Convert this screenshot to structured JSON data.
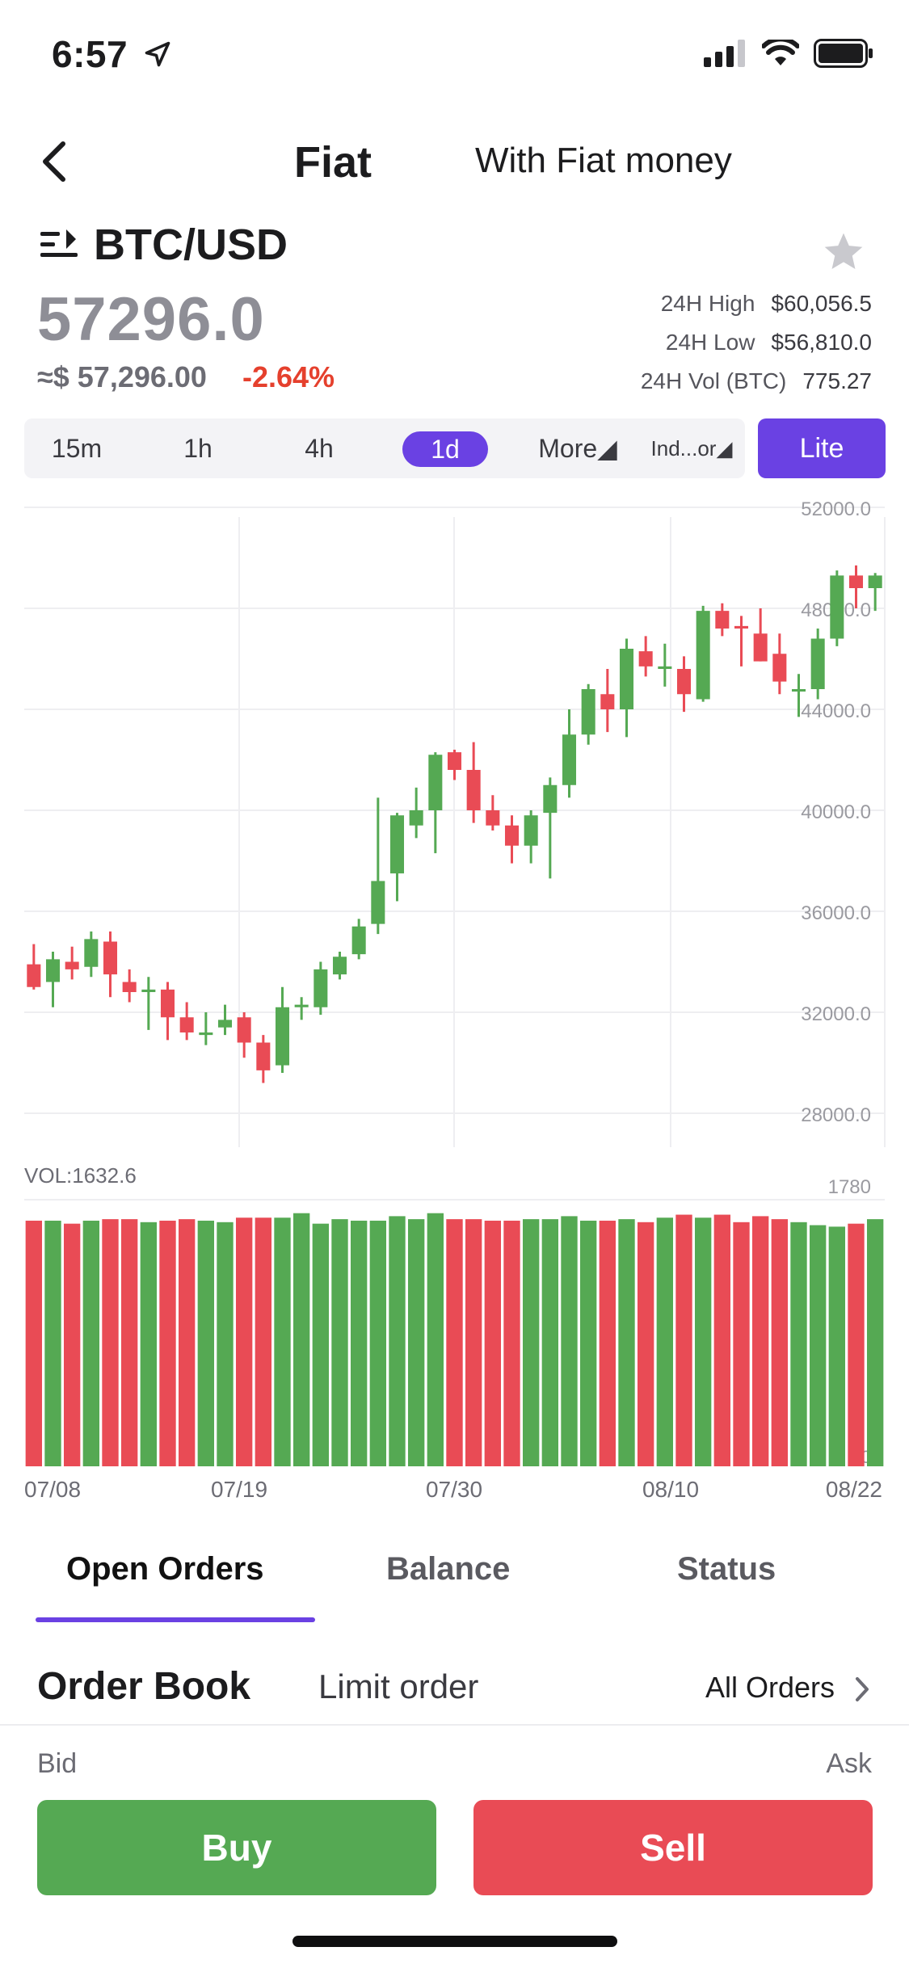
{
  "status_bar": {
    "time": "6:57"
  },
  "nav": {
    "title": "Fiat",
    "subtitle": "With Fiat money"
  },
  "pair": {
    "name": "BTC/USD"
  },
  "price": {
    "last": "57296.0",
    "approx": "≈$ 57,296.00",
    "change": "-2.64%"
  },
  "stats": {
    "high_label": "24H High",
    "high_value": "$60,056.5",
    "low_label": "24H Low",
    "low_value": "$56,810.0",
    "vol_label": "24H Vol (BTC)",
    "vol_value": "775.27"
  },
  "timeframes": [
    "15m",
    "1h",
    "4h",
    "1d",
    "More◢",
    "Ind...or◢"
  ],
  "timeframe_selected": "1d",
  "lite_label": "Lite",
  "colors": {
    "accent": "#6a41e3",
    "up": "#55a953",
    "down": "#e94b55"
  },
  "chart_data": {
    "type": "candlestick",
    "y_ticks": [
      "52000.0",
      "48000.0",
      "44000.0",
      "40000.0",
      "36000.0",
      "32000.0",
      "28000.0"
    ],
    "ylim": [
      28000,
      52000
    ],
    "x_ticks": [
      "07/08",
      "07/19",
      "07/30",
      "08/10",
      "08/22"
    ],
    "candles": [
      {
        "o": 33900,
        "h": 34700,
        "l": 32900,
        "c": 33000
      },
      {
        "o": 33200,
        "h": 34400,
        "l": 32200,
        "c": 34100
      },
      {
        "o": 34000,
        "h": 34600,
        "l": 33300,
        "c": 33700
      },
      {
        "o": 33800,
        "h": 35200,
        "l": 33400,
        "c": 34900
      },
      {
        "o": 34800,
        "h": 35200,
        "l": 32600,
        "c": 33500
      },
      {
        "o": 33200,
        "h": 33700,
        "l": 32400,
        "c": 32800
      },
      {
        "o": 32800,
        "h": 33400,
        "l": 31300,
        "c": 32900
      },
      {
        "o": 32900,
        "h": 33200,
        "l": 30900,
        "c": 31800
      },
      {
        "o": 31800,
        "h": 32400,
        "l": 30900,
        "c": 31200
      },
      {
        "o": 31100,
        "h": 32000,
        "l": 30700,
        "c": 31200
      },
      {
        "o": 31400,
        "h": 32300,
        "l": 31100,
        "c": 31700
      },
      {
        "o": 31800,
        "h": 32000,
        "l": 30200,
        "c": 30800
      },
      {
        "o": 30800,
        "h": 31100,
        "l": 29200,
        "c": 29700
      },
      {
        "o": 29900,
        "h": 33000,
        "l": 29600,
        "c": 32200
      },
      {
        "o": 32200,
        "h": 32600,
        "l": 31700,
        "c": 32300
      },
      {
        "o": 32200,
        "h": 34000,
        "l": 31900,
        "c": 33700
      },
      {
        "o": 33500,
        "h": 34400,
        "l": 33300,
        "c": 34200
      },
      {
        "o": 34300,
        "h": 35700,
        "l": 34100,
        "c": 35400
      },
      {
        "o": 35500,
        "h": 40500,
        "l": 35100,
        "c": 37200
      },
      {
        "o": 37500,
        "h": 39900,
        "l": 36400,
        "c": 39800
      },
      {
        "o": 39400,
        "h": 40900,
        "l": 38900,
        "c": 40000
      },
      {
        "o": 40000,
        "h": 42300,
        "l": 38300,
        "c": 42200
      },
      {
        "o": 42300,
        "h": 42400,
        "l": 41200,
        "c": 41600
      },
      {
        "o": 41600,
        "h": 42700,
        "l": 39500,
        "c": 40000
      },
      {
        "o": 40000,
        "h": 40600,
        "l": 39200,
        "c": 39400
      },
      {
        "o": 39400,
        "h": 39800,
        "l": 37900,
        "c": 38600
      },
      {
        "o": 38600,
        "h": 40000,
        "l": 37900,
        "c": 39800
      },
      {
        "o": 39900,
        "h": 41300,
        "l": 37300,
        "c": 41000
      },
      {
        "o": 41000,
        "h": 44000,
        "l": 40500,
        "c": 43000
      },
      {
        "o": 43000,
        "h": 45000,
        "l": 42600,
        "c": 44800
      },
      {
        "o": 44600,
        "h": 45600,
        "l": 43100,
        "c": 44000
      },
      {
        "o": 44000,
        "h": 46800,
        "l": 42900,
        "c": 46400
      },
      {
        "o": 46300,
        "h": 46900,
        "l": 45300,
        "c": 45700
      },
      {
        "o": 45600,
        "h": 46600,
        "l": 44900,
        "c": 45700
      },
      {
        "o": 45600,
        "h": 46100,
        "l": 43900,
        "c": 44600
      },
      {
        "o": 44400,
        "h": 48100,
        "l": 44300,
        "c": 47900
      },
      {
        "o": 47900,
        "h": 48200,
        "l": 46900,
        "c": 47200
      },
      {
        "o": 47300,
        "h": 47700,
        "l": 45700,
        "c": 47200
      },
      {
        "o": 47000,
        "h": 48000,
        "l": 45900,
        "c": 45900
      },
      {
        "o": 46200,
        "h": 47000,
        "l": 44600,
        "c": 45100
      },
      {
        "o": 44800,
        "h": 45400,
        "l": 43700,
        "c": 44800
      },
      {
        "o": 44800,
        "h": 47200,
        "l": 44400,
        "c": 46800
      },
      {
        "o": 46800,
        "h": 49500,
        "l": 46500,
        "c": 49300
      },
      {
        "o": 49300,
        "h": 49700,
        "l": 48000,
        "c": 48800
      },
      {
        "o": 48800,
        "h": 49400,
        "l": 47900,
        "c": 49300
      }
    ],
    "volume": {
      "label": "VOL:1632.6",
      "max_label": "1780",
      "zero_label": "0",
      "ylim": [
        0,
        1780
      ],
      "values": [
        1640,
        1640,
        1620,
        1640,
        1650,
        1650,
        1630,
        1640,
        1650,
        1640,
        1630,
        1660,
        1660,
        1660,
        1690,
        1620,
        1650,
        1640,
        1640,
        1670,
        1650,
        1690,
        1650,
        1650,
        1640,
        1640,
        1650,
        1650,
        1670,
        1640,
        1640,
        1650,
        1630,
        1660,
        1680,
        1660,
        1680,
        1630,
        1670,
        1650,
        1630,
        1610,
        1600,
        1620,
        1650
      ]
    }
  },
  "tabs": [
    "Open Orders",
    "Balance",
    "Status"
  ],
  "order_book": {
    "title": "Order Book",
    "limit_label": "Limit order",
    "all_label": "All Orders"
  },
  "book_labels": {
    "bid": "Bid",
    "ask": "Ask"
  },
  "buttons": {
    "buy": "Buy",
    "sell": "Sell"
  }
}
